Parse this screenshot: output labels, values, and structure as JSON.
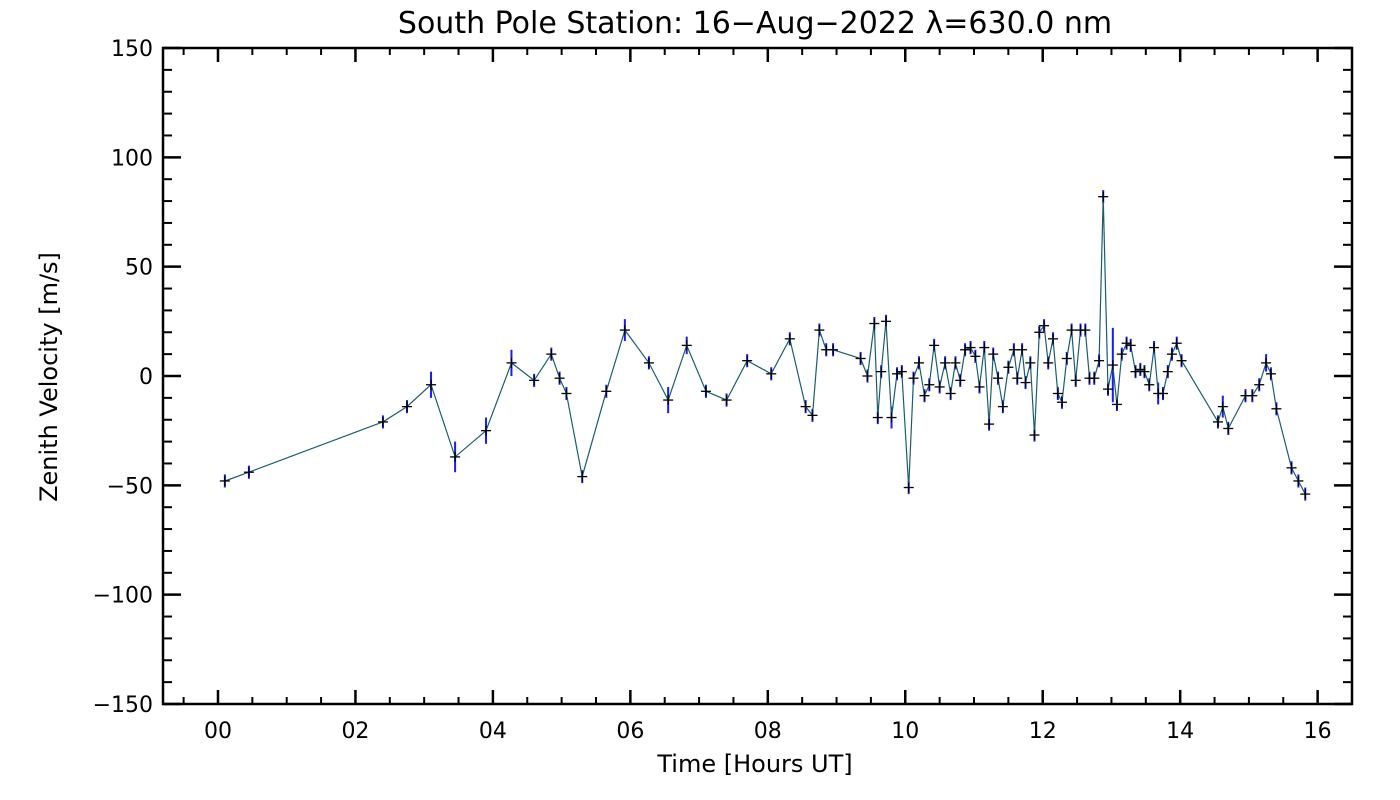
{
  "chart_data": {
    "type": "scatter",
    "title": "South Pole Station: 16−Aug−2022 λ=630.0 nm",
    "xlabel": "Time [Hours UT]",
    "ylabel": "Zenith Velocity [m/s]",
    "xlim": [
      -0.8,
      16.5
    ],
    "ylim": [
      -150,
      150
    ],
    "x_ticks": [
      0,
      2,
      4,
      6,
      8,
      10,
      12,
      14,
      16
    ],
    "x_tick_labels": [
      "00",
      "02",
      "04",
      "06",
      "08",
      "10",
      "12",
      "14",
      "16"
    ],
    "y_ticks": [
      -150,
      -100,
      -50,
      0,
      50,
      100,
      150
    ],
    "y_tick_labels": [
      "−150",
      "−100",
      "−50",
      "0",
      "50",
      "100",
      "150"
    ],
    "grid": false,
    "colors": {
      "line": "#1a5e6e",
      "error_bar": "#1a1aff",
      "marker": "#000000"
    },
    "series": [
      {
        "x": [
          0.1,
          0.45,
          2.4,
          2.75,
          3.1,
          3.45,
          3.9,
          4.27,
          4.6,
          4.85,
          4.97,
          5.07,
          5.3,
          5.65,
          5.92,
          6.27,
          6.55,
          6.82,
          7.1,
          7.4,
          7.7,
          8.05,
          8.32,
          8.55,
          8.65,
          8.75,
          8.85,
          8.95,
          9.35,
          9.45,
          9.55,
          9.6,
          9.65,
          9.72,
          9.8,
          9.88,
          9.95,
          10.05,
          10.12,
          10.2,
          10.28,
          10.35,
          10.42,
          10.5,
          10.58,
          10.66,
          10.73,
          10.8,
          10.87,
          10.95,
          11.02,
          11.08,
          11.15,
          11.22,
          11.28,
          11.35,
          11.42,
          11.5,
          11.58,
          11.63,
          11.7,
          11.75,
          11.82,
          11.88,
          11.95,
          12.02,
          12.08,
          12.15,
          12.22,
          12.28,
          12.35,
          12.42,
          12.48,
          12.55,
          12.62,
          12.68,
          12.75,
          12.82,
          12.88,
          12.95,
          13.02,
          13.08,
          13.15,
          13.22,
          13.28,
          13.35,
          13.42,
          13.48,
          13.55,
          13.62,
          13.68,
          13.75,
          13.82,
          13.88,
          13.95,
          14.02,
          14.55,
          14.62,
          14.7,
          14.95,
          15.05,
          15.15,
          15.25,
          15.32,
          15.4,
          15.62,
          15.72,
          15.82
        ],
        "y": [
          -48,
          -44,
          -21,
          -14,
          -4,
          -37,
          -25,
          6,
          -2,
          10,
          -1,
          -8,
          -46,
          -7,
          21,
          6,
          -11,
          14,
          -7,
          -11,
          7,
          1,
          17,
          -14,
          -18,
          21,
          12,
          12,
          8,
          0,
          24,
          -19,
          2,
          25,
          -19,
          1,
          2,
          -51,
          -1,
          6,
          -9,
          -4,
          14,
          -5,
          6,
          -8,
          6,
          -2,
          12,
          13,
          9,
          -5,
          13,
          -22,
          10,
          -1,
          -14,
          4,
          12,
          -1,
          12,
          -3,
          6,
          -27,
          20,
          23,
          6,
          17,
          -8,
          -12,
          8,
          21,
          -2,
          21,
          21,
          -1,
          -1,
          7,
          82,
          -6,
          5,
          -13,
          10,
          15,
          14,
          2,
          3,
          2,
          -4,
          13,
          -8,
          -8,
          2,
          10,
          15,
          7,
          -21,
          -14,
          -24,
          -9,
          -9,
          -4,
          6,
          1,
          -15,
          -42,
          -48,
          -54
        ],
        "errors": [
          3,
          3,
          3,
          3,
          6,
          7,
          6,
          6,
          3,
          3,
          3,
          3,
          3,
          3,
          5,
          3,
          6,
          4,
          3,
          3,
          3,
          3,
          3,
          3,
          3,
          3,
          3,
          3,
          3,
          3,
          3,
          3,
          3,
          3,
          5,
          3,
          3,
          3,
          3,
          3,
          3,
          3,
          3,
          3,
          3,
          3,
          3,
          3,
          3,
          3,
          3,
          3,
          3,
          3,
          3,
          3,
          3,
          3,
          3,
          3,
          3,
          3,
          3,
          3,
          3,
          3,
          3,
          3,
          3,
          3,
          3,
          3,
          3,
          3,
          3,
          3,
          3,
          3,
          3,
          3,
          17,
          3,
          3,
          3,
          3,
          3,
          3,
          3,
          3,
          3,
          5,
          3,
          3,
          3,
          3,
          3,
          3,
          5,
          3,
          3,
          3,
          3,
          4,
          3,
          3,
          3,
          3,
          3
        ]
      }
    ]
  }
}
